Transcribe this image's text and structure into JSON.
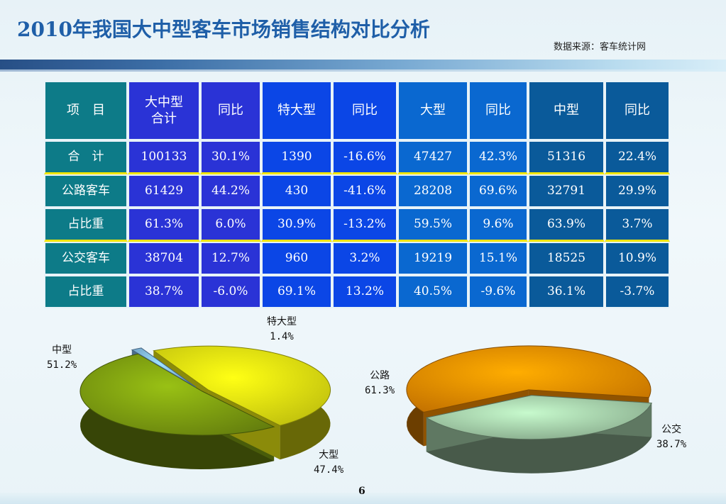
{
  "title": "2010年我国大中型客车市场销售结构对比分析",
  "source": "数据来源：客车统计网",
  "page_number": "6",
  "table": {
    "header": [
      "项 目",
      "大中型合计",
      "同比",
      "特大型",
      "同比",
      "大型",
      "同比",
      "中型",
      "同比"
    ],
    "header_display": [
      "项　目",
      "大中型\n合计",
      "同比",
      "特大型",
      "同比",
      "大型",
      "同比",
      "中型",
      "同比"
    ],
    "rows": [
      [
        "合 计",
        "100133",
        "30.1%",
        "1390",
        "-16.6%",
        "47427",
        "42.3%",
        "51316",
        "22.4%"
      ],
      [
        "公路客车",
        "61429",
        "44.2%",
        "430",
        "-41.6%",
        "28208",
        "69.6%",
        "32791",
        "29.9%"
      ],
      [
        "占比重",
        "61.3%",
        "6.0%",
        "30.9%",
        "-13.2%",
        "59.5%",
        "9.6%",
        "63.9%",
        "3.7%"
      ],
      [
        "公交客车",
        "38704",
        "12.7%",
        "960",
        "3.2%",
        "19219",
        "15.1%",
        "18525",
        "10.9%"
      ],
      [
        "占比重",
        "38.7%",
        "-6.0%",
        "69.1%",
        "13.2%",
        "40.5%",
        "-9.6%",
        "36.1%",
        "-3.7%"
      ]
    ],
    "row_labels_display": [
      "合　计",
      "公路客车",
      "占比重",
      "公交客车",
      "占比重"
    ]
  },
  "chart_data": [
    {
      "type": "pie",
      "title": "",
      "slices": [
        {
          "label": "中型",
          "value": 51.2,
          "value_label": "51.2%",
          "color": "#7a9a10"
        },
        {
          "label": "特大型",
          "value": 1.4,
          "value_label": "1.4%",
          "color": "#7fb6e8"
        },
        {
          "label": "大型",
          "value": 47.4,
          "value_label": "47.4%",
          "color": "#e8e810"
        }
      ]
    },
    {
      "type": "pie",
      "title": "",
      "slices": [
        {
          "label": "公路",
          "value": 61.3,
          "value_label": "61.3%",
          "color": "#f08a00"
        },
        {
          "label": "公交",
          "value": 38.7,
          "value_label": "38.7%",
          "color": "#9fc8a4"
        }
      ]
    }
  ]
}
